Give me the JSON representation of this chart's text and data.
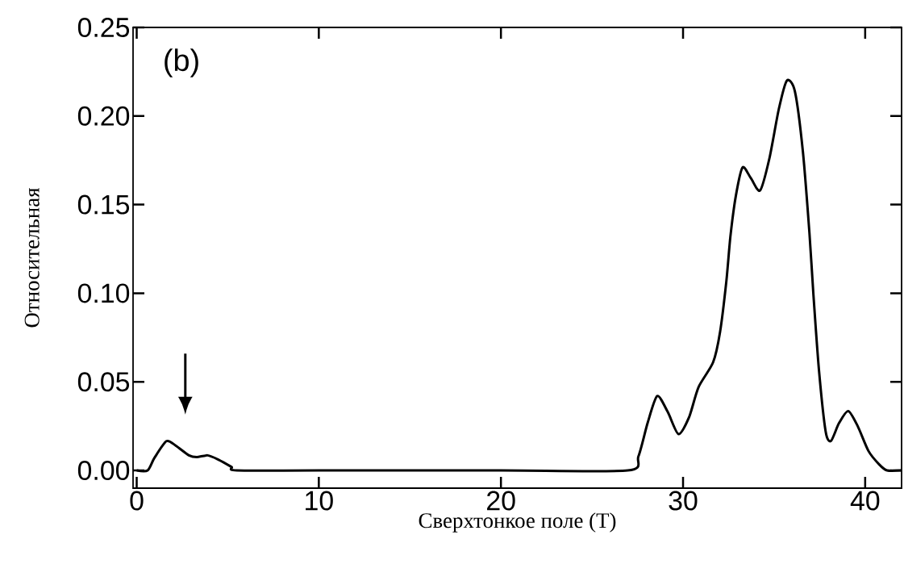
{
  "chart_data": {
    "type": "line",
    "xlabel": "Сверхтонкое поле (T)",
    "ylabel": "Относительная",
    "annotations": [
      "(b)"
    ],
    "color": "#000000",
    "x": [
      0,
      0.6,
      0.97,
      1.63,
      2.14,
      2.87,
      3.3,
      3.9,
      4.5,
      5.2,
      5.5,
      10,
      20,
      26.96,
      27.55,
      28.06,
      28.58,
      29.16,
      29.75,
      30.33,
      30.85,
      31.65,
      32.03,
      32.38,
      32.6,
      32.9,
      33.27,
      33.72,
      34.23,
      34.74,
      35.26,
      35.7,
      36.14,
      36.58,
      36.94,
      37.16,
      37.46,
      37.83,
      38.12,
      38.56,
      39.07,
      39.59,
      40.18,
      40.76,
      41.2,
      42
    ],
    "values": [
      0,
      0,
      0.007,
      0.0165,
      0.014,
      0.0085,
      0.0075,
      0.0085,
      0.006,
      0.002,
      0,
      0,
      0,
      0,
      0.008,
      0.027,
      0.042,
      0.033,
      0.0205,
      0.03,
      0.047,
      0.061,
      0.078,
      0.107,
      0.132,
      0.155,
      0.171,
      0.165,
      0.158,
      0.176,
      0.204,
      0.22,
      0.214,
      0.18,
      0.134,
      0.099,
      0.057,
      0.022,
      0.0166,
      0.0266,
      0.0335,
      0.025,
      0.011,
      0.0035,
      0,
      0
    ],
    "xlim": [
      -0.2,
      42
    ],
    "ylim": [
      -0.01,
      0.25
    ],
    "xticks": [
      0,
      10,
      20,
      30,
      40
    ],
    "yticks": [
      {
        "value": 0,
        "label": "0.00"
      },
      {
        "value": 0.05,
        "label": "0.05"
      },
      {
        "value": 0.1,
        "label": "0.10"
      },
      {
        "value": 0.15,
        "label": "0.15"
      },
      {
        "value": 0.2,
        "label": "0.20"
      },
      {
        "value": 0.25,
        "label": "0.25"
      }
    ]
  }
}
